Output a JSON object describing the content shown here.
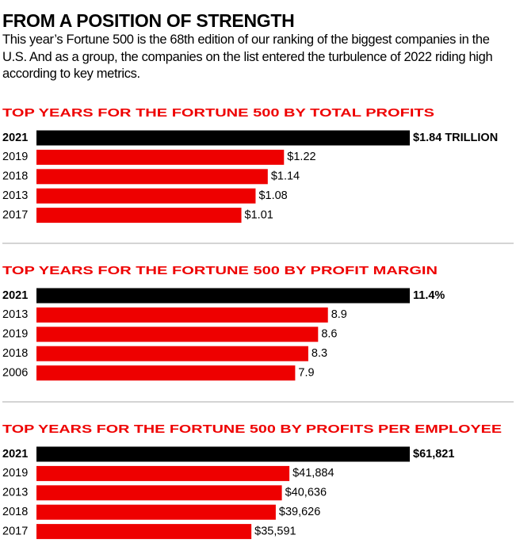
{
  "header": {
    "title": "FROM A POSITION OF STRENGTH",
    "subtitle": "This year’s Fortune 500 is the 68th edition of our ranking of the biggest companies in the U.S. And as a group, the companies on the list entered the turbulence of 2022 riding high according to key metrics."
  },
  "chart_data": [
    {
      "type": "bar",
      "orientation": "horizontal",
      "title": "TOP YEARS FOR THE FORTUNE 500 BY TOTAL PROFITS",
      "categories": [
        "2021",
        "2019",
        "2018",
        "2013",
        "2017"
      ],
      "values": [
        1.84,
        1.22,
        1.14,
        1.08,
        1.01
      ],
      "value_labels": [
        "$1.84 TRILLION",
        "$1.22",
        "$1.14",
        "$1.08",
        "$1.01"
      ],
      "colors": [
        "#000000",
        "#ee0000",
        "#ee0000",
        "#ee0000",
        "#ee0000"
      ]
    },
    {
      "type": "bar",
      "orientation": "horizontal",
      "title": "TOP YEARS FOR THE FORTUNE 500 BY PROFIT MARGIN",
      "categories": [
        "2021",
        "2013",
        "2019",
        "2018",
        "2006"
      ],
      "values": [
        11.4,
        8.9,
        8.6,
        8.3,
        7.9
      ],
      "value_labels": [
        "11.4%",
        "8.9",
        "8.6",
        "8.3",
        "7.9"
      ],
      "colors": [
        "#000000",
        "#ee0000",
        "#ee0000",
        "#ee0000",
        "#ee0000"
      ]
    },
    {
      "type": "bar",
      "orientation": "horizontal",
      "title": "TOP YEARS FOR THE FORTUNE 500 BY PROFITS PER EMPLOYEE",
      "categories": [
        "2021",
        "2019",
        "2013",
        "2018",
        "2017"
      ],
      "values": [
        61821,
        41884,
        40636,
        39626,
        35591
      ],
      "value_labels": [
        "$61,821",
        "$41,884",
        "$40,636",
        "$39,626",
        "$35,591"
      ],
      "colors": [
        "#000000",
        "#ee0000",
        "#ee0000",
        "#ee0000",
        "#ee0000"
      ]
    }
  ]
}
